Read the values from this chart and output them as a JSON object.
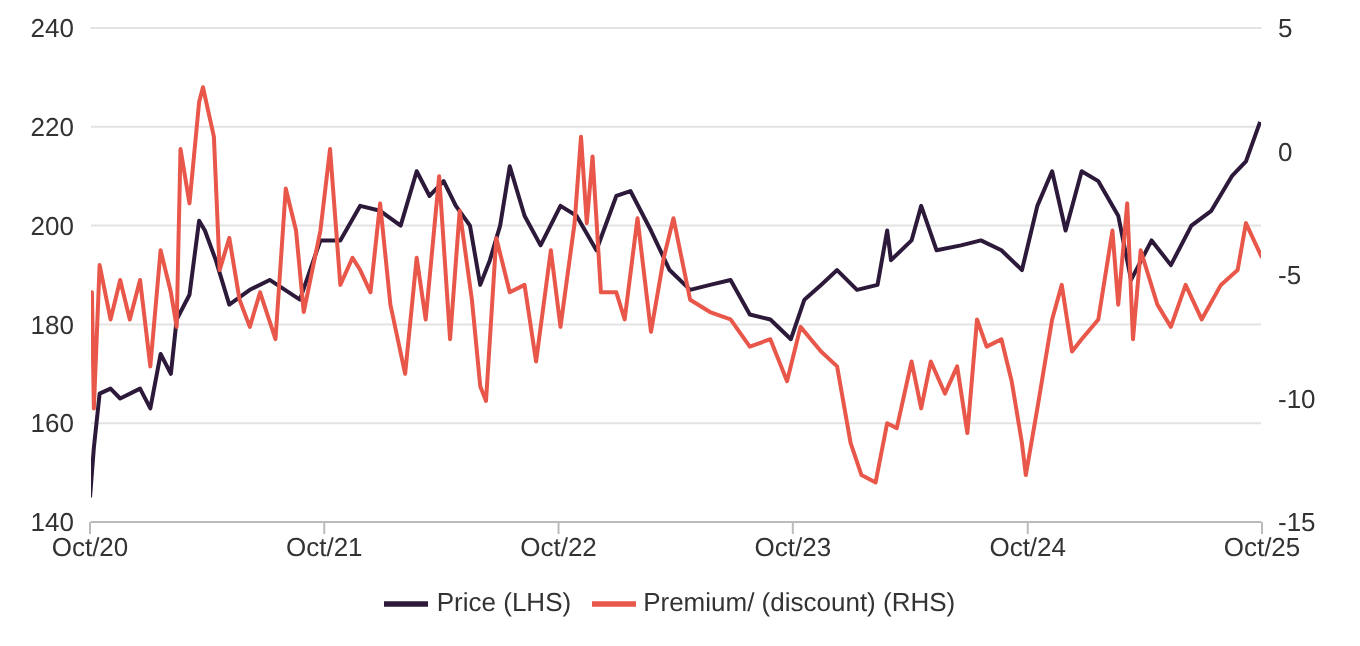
{
  "chart_data": {
    "type": "line",
    "xlim": [
      "2020-10-01",
      "2025-10-01"
    ],
    "xticks": [
      {
        "value": "2020-10-01",
        "label": "Oct/20"
      },
      {
        "value": "2021-10-01",
        "label": "Oct/21"
      },
      {
        "value": "2022-10-01",
        "label": "Oct/22"
      },
      {
        "value": "2023-10-01",
        "label": "Oct/23"
      },
      {
        "value": "2024-10-01",
        "label": "Oct/24"
      },
      {
        "value": "2025-10-01",
        "label": "Oct/25"
      }
    ],
    "ylim": [
      140,
      240
    ],
    "yticks": [
      140,
      160,
      180,
      200,
      220,
      240
    ],
    "y2lim": [
      -15,
      5
    ],
    "y2ticks": [
      -15,
      -10,
      -5,
      0,
      5
    ],
    "grid": "y",
    "legend": "bottom",
    "marker": "none",
    "line_style": "solid",
    "series": [
      {
        "name": "Price (LHS)",
        "color": "#2d1a3a",
        "x": [
          "2020-10-01",
          "2020-10-07",
          "2020-10-16",
          "2020-11-02",
          "2020-11-17",
          "2020-12-18",
          "2021-01-03",
          "2021-01-19",
          "2021-02-04",
          "2021-02-13",
          "2021-03-05",
          "2021-03-20",
          "2021-03-29",
          "2021-04-15",
          "2021-05-06",
          "2021-06-07",
          "2021-07-08",
          "2021-08-24",
          "2021-09-25",
          "2021-10-26",
          "2021-11-26",
          "2021-12-27",
          "2022-01-28",
          "2022-02-22",
          "2022-03-14",
          "2022-04-05",
          "2022-04-24",
          "2022-05-16",
          "2022-06-01",
          "2022-06-16",
          "2022-07-02",
          "2022-07-17",
          "2022-08-09",
          "2022-09-03",
          "2022-10-04",
          "2022-10-29",
          "2022-11-29",
          "2022-12-30",
          "2023-01-21",
          "2023-02-22",
          "2023-03-23",
          "2023-04-24",
          "2023-05-25",
          "2023-06-26",
          "2023-07-26",
          "2023-08-27",
          "2023-09-28",
          "2023-10-19",
          "2023-11-14",
          "2023-12-09",
          "2024-01-09",
          "2024-02-10",
          "2024-02-25",
          "2024-03-02",
          "2024-04-03",
          "2024-04-18",
          "2024-05-12",
          "2024-06-19",
          "2024-07-20",
          "2024-08-21",
          "2024-09-22",
          "2024-10-16",
          "2024-11-08",
          "2024-11-29",
          "2024-12-24",
          "2025-01-19",
          "2025-02-19",
          "2025-03-11",
          "2025-04-12",
          "2025-05-12",
          "2025-06-13",
          "2025-07-14",
          "2025-08-15",
          "2025-09-06",
          "2025-09-28"
        ],
        "values": [
          145,
          155,
          166,
          167,
          165,
          167,
          163,
          174,
          170,
          181,
          186,
          201,
          199,
          193,
          184,
          187,
          189,
          185,
          197,
          197,
          204,
          203,
          200,
          211,
          206,
          209,
          204,
          200,
          188,
          193,
          200,
          212,
          202,
          196,
          204,
          202,
          195,
          206,
          207,
          199,
          191,
          187,
          188,
          189,
          182,
          181,
          177,
          185,
          188,
          191,
          187,
          188,
          199,
          193,
          197,
          204,
          195,
          196,
          197,
          195,
          191,
          204,
          211,
          199,
          211,
          209,
          202,
          189,
          197,
          192,
          200,
          203,
          210,
          213,
          221
        ]
      },
      {
        "name": "Premium/ (discount) (RHS)",
        "color": "#e8574a",
        "axis": "y2",
        "x": [
          "2020-10-01",
          "2020-10-04",
          "2020-10-07",
          "2020-10-16",
          "2020-11-02",
          "2020-11-17",
          "2020-12-02",
          "2020-12-18",
          "2021-01-03",
          "2021-01-19",
          "2021-02-04",
          "2021-02-13",
          "2021-02-19",
          "2021-03-05",
          "2021-03-20",
          "2021-03-26",
          "2021-04-12",
          "2021-04-21",
          "2021-05-06",
          "2021-05-22",
          "2021-06-07",
          "2021-06-23",
          "2021-07-17",
          "2021-08-02",
          "2021-08-18",
          "2021-08-30",
          "2021-09-25",
          "2021-10-10",
          "2021-10-26",
          "2021-11-14",
          "2021-11-26",
          "2021-12-12",
          "2021-12-27",
          "2022-01-12",
          "2022-02-04",
          "2022-02-22",
          "2022-03-08",
          "2022-03-29",
          "2022-04-15",
          "2022-04-30",
          "2022-05-19",
          "2022-06-01",
          "2022-06-10",
          "2022-06-26",
          "2022-07-17",
          "2022-08-09",
          "2022-08-27",
          "2022-09-19",
          "2022-10-04",
          "2022-10-26",
          "2022-11-05",
          "2022-11-14",
          "2022-11-23",
          "2022-12-06",
          "2022-12-30",
          "2023-01-12",
          "2023-02-01",
          "2023-02-22",
          "2023-03-14",
          "2023-03-29",
          "2023-04-24",
          "2023-05-25",
          "2023-06-26",
          "2023-07-26",
          "2023-08-27",
          "2023-09-22",
          "2023-10-13",
          "2023-11-14",
          "2023-12-09",
          "2023-12-30",
          "2024-01-16",
          "2024-02-07",
          "2024-02-25",
          "2024-03-11",
          "2024-04-03",
          "2024-04-18",
          "2024-05-03",
          "2024-05-25",
          "2024-06-13",
          "2024-06-29",
          "2024-07-14",
          "2024-07-29",
          "2024-08-21",
          "2024-09-06",
          "2024-09-22",
          "2024-09-28",
          "2024-10-16",
          "2024-11-08",
          "2024-11-23",
          "2024-12-09",
          "2024-12-24",
          "2025-01-19",
          "2025-02-10",
          "2025-02-19",
          "2025-03-05",
          "2025-03-14",
          "2025-03-26",
          "2025-04-21",
          "2025-05-12",
          "2025-06-04",
          "2025-06-29",
          "2025-07-29",
          "2025-08-24",
          "2025-09-06",
          "2025-09-22",
          "2025-10-01"
        ],
        "values": [
          -7.1,
          -5.7,
          -10.4,
          -4.6,
          -6.8,
          -5.2,
          -6.8,
          -5.2,
          -8.7,
          -4.0,
          -5.7,
          -7.1,
          0.1,
          -2.1,
          2.0,
          2.6,
          0.6,
          -4.8,
          -3.5,
          -6.0,
          -7.1,
          -5.7,
          -7.6,
          -1.5,
          -3.2,
          -6.5,
          -3.2,
          0.1,
          -5.4,
          -4.3,
          -4.8,
          -5.7,
          -2.1,
          -6.2,
          -9.0,
          -4.3,
          -6.8,
          -1.0,
          -7.6,
          -2.4,
          -6.0,
          -9.5,
          -10.1,
          -3.5,
          -5.7,
          -5.4,
          -8.5,
          -4.0,
          -7.1,
          -2.9,
          0.6,
          -2.9,
          -0.2,
          -5.7,
          -5.7,
          -6.8,
          -2.7,
          -7.3,
          -4.3,
          -2.7,
          -6.0,
          -6.5,
          -6.8,
          -7.9,
          -7.6,
          -9.3,
          -7.1,
          -8.1,
          -8.7,
          -11.8,
          -13.1,
          -13.4,
          -11.0,
          -11.2,
          -8.5,
          -10.4,
          -8.5,
          -9.8,
          -8.7,
          -11.4,
          -6.8,
          -7.9,
          -7.6,
          -9.3,
          -11.8,
          -13.1,
          -10.4,
          -6.8,
          -5.4,
          -8.1,
          -7.6,
          -6.8,
          -3.2,
          -6.2,
          -2.1,
          -7.6,
          -4.0,
          -6.2,
          -7.1,
          -5.4,
          -6.8,
          -5.4,
          -4.8,
          -2.9,
          -3.8,
          -4.3
        ]
      }
    ]
  }
}
